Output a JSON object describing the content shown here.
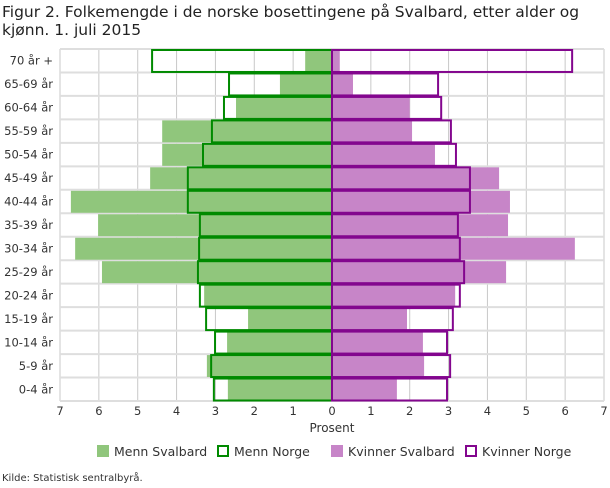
{
  "chart_data": {
    "type": "bar",
    "orientation": "horizontal-pyramid",
    "title": "Figur 2. Folkemengde i de norske bosettingene på Svalbard, etter alder og kjønn. 1. juli 2015",
    "xlabel": "Prosent",
    "xlim": [
      -7,
      7
    ],
    "xticks": [
      "7",
      "6",
      "5",
      "4",
      "3",
      "2",
      "1",
      "0",
      "1",
      "2",
      "3",
      "4",
      "5",
      "6",
      "7"
    ],
    "categories": [
      "70 år +",
      "65-69 år",
      "60-64 år",
      "55-59 år",
      "50-54 år",
      "45-49 år",
      "40-44 år",
      "35-39 år",
      "30-34 år",
      "25-29 år",
      "20-24 år",
      "15-19 år",
      "10-14 år",
      "5-9 år",
      "0-4 år"
    ],
    "series": [
      {
        "name": "Menn Svalbard",
        "side": "left",
        "style": "fill",
        "color": "#90c67c",
        "values": [
          0.69,
          1.34,
          2.47,
          4.37,
          4.37,
          4.68,
          6.72,
          6.02,
          6.61,
          5.92,
          3.29,
          2.16,
          2.7,
          3.22,
          2.68
        ]
      },
      {
        "name": "Menn Norge",
        "side": "left",
        "style": "outline",
        "color": "#008a00",
        "values": [
          4.63,
          2.65,
          2.78,
          3.09,
          3.32,
          3.71,
          3.71,
          3.4,
          3.42,
          3.45,
          3.4,
          3.24,
          3.01,
          3.11,
          3.04
        ]
      },
      {
        "name": "Kvinner Svalbard",
        "side": "right",
        "style": "fill",
        "color": "#c785c8",
        "values": [
          0.2,
          0.54,
          2.0,
          2.06,
          2.65,
          4.3,
          4.58,
          4.53,
          6.25,
          4.48,
          3.17,
          1.93,
          2.34,
          2.37,
          1.67
        ]
      },
      {
        "name": "Kvinner Norge",
        "side": "right",
        "style": "outline",
        "color": "#83068e",
        "values": [
          6.18,
          2.73,
          2.81,
          3.06,
          3.19,
          3.55,
          3.55,
          3.24,
          3.29,
          3.4,
          3.29,
          3.11,
          2.96,
          3.04,
          2.96
        ]
      }
    ],
    "grid": true,
    "legend_position": "bottom"
  },
  "source": "Kilde: Statistisk sentralbyrå."
}
